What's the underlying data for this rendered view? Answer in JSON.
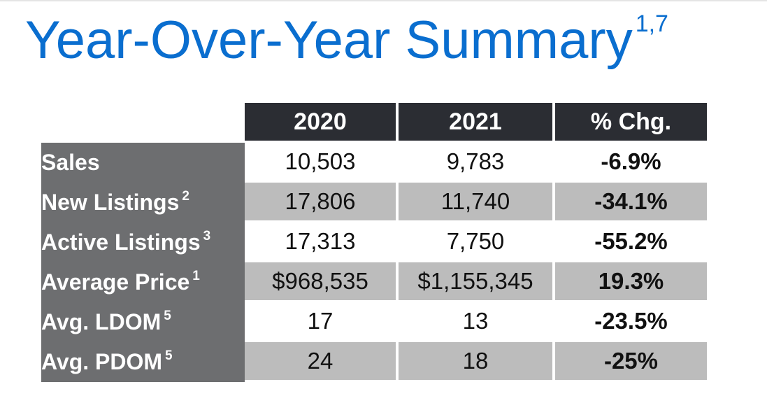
{
  "title": {
    "text": "Year-Over-Year Summary",
    "superscript": "1,7"
  },
  "colors": {
    "title": "#0a6ecf",
    "header_bg": "#2b2d33",
    "row_label_bg": "#6d6e70",
    "row_shade": "#bcbcbc",
    "row_plain": "#ffffff"
  },
  "chart_data": {
    "type": "table",
    "columns": [
      "2020",
      "2021",
      "% Chg."
    ],
    "rows": [
      {
        "label": "Sales",
        "note": "",
        "values": [
          "10,503",
          "9,783",
          "-6.9%"
        ]
      },
      {
        "label": "New Listings",
        "note": "2",
        "values": [
          "17,806",
          "11,740",
          "-34.1%"
        ]
      },
      {
        "label": "Active Listings",
        "note": "3",
        "values": [
          "17,313",
          "7,750",
          "-55.2%"
        ]
      },
      {
        "label": "Average Price",
        "note": "1",
        "values": [
          "$968,535",
          "$1,155,345",
          "19.3%"
        ]
      },
      {
        "label": "Avg. LDOM",
        "note": "5",
        "values": [
          "17",
          "13",
          "-23.5%"
        ]
      },
      {
        "label": "Avg. PDOM",
        "note": "5",
        "values": [
          "24",
          "18",
          "-25%"
        ]
      }
    ]
  }
}
